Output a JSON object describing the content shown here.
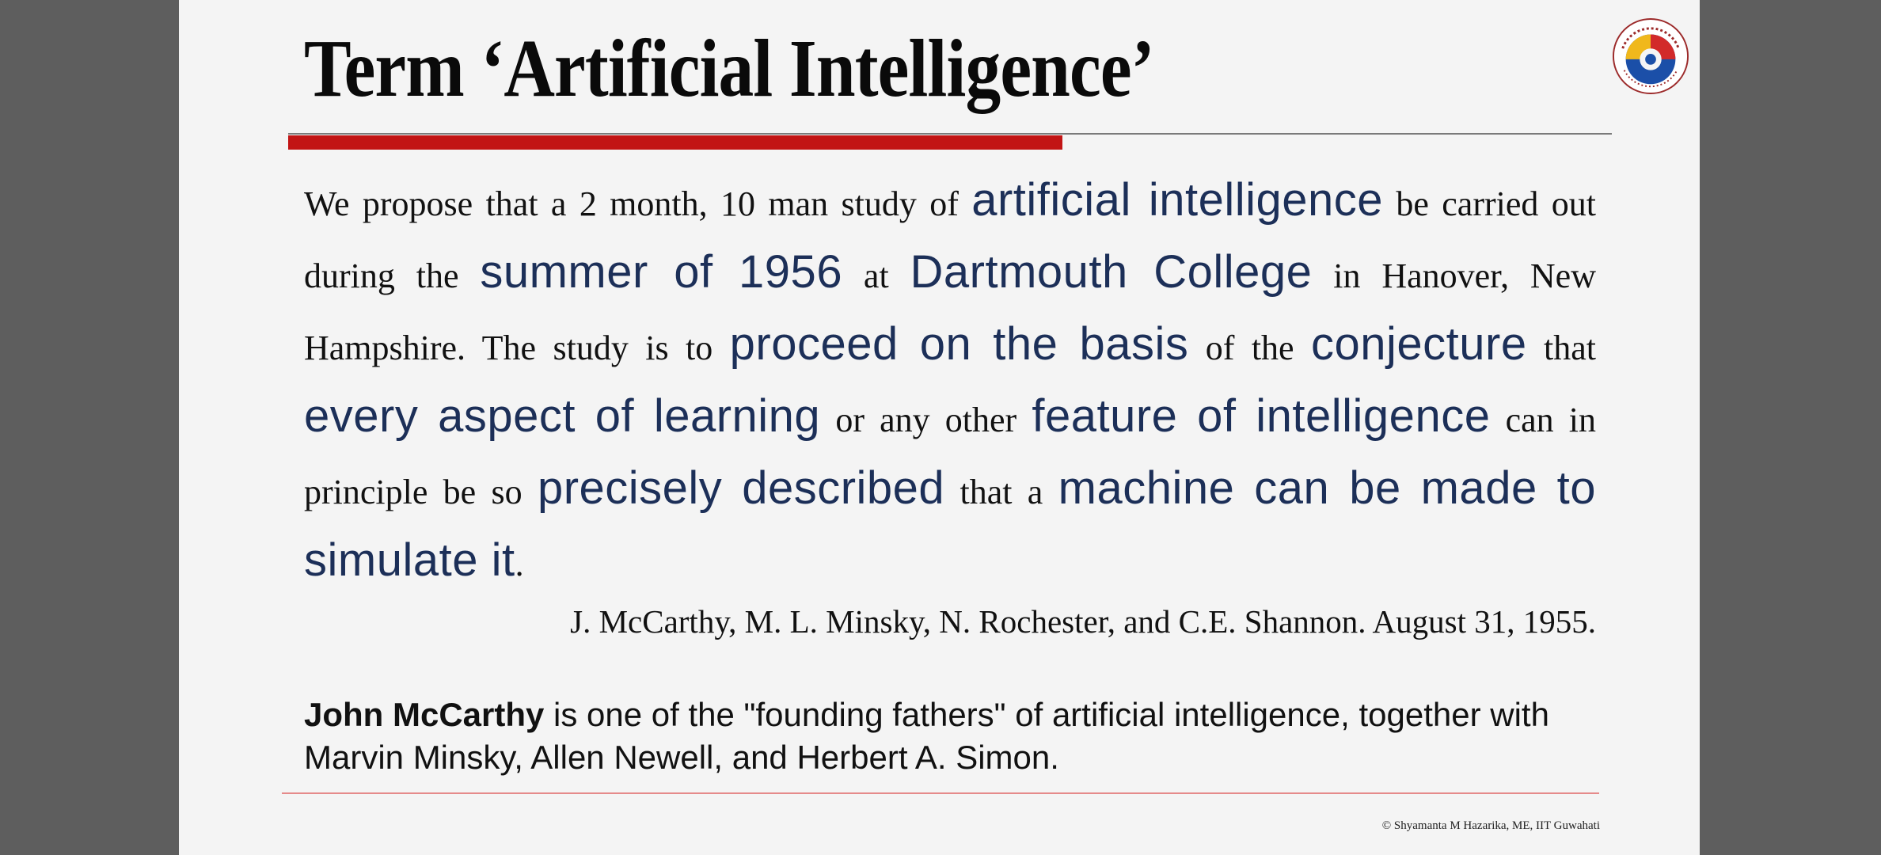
{
  "slide": {
    "title": "Term ‘Artificial Intelligence’",
    "quote": [
      {
        "t": "We propose that a 2 month, 10 man study of ",
        "em": false
      },
      {
        "t": "artificial intelligence",
        "em": true
      },
      {
        "t": " be carried out during the ",
        "em": false
      },
      {
        "t": "summer of 1956",
        "em": true
      },
      {
        "t": " at ",
        "em": false
      },
      {
        "t": "Dartmouth College",
        "em": true
      },
      {
        "t": " in Hanover, New Hampshire. The study is to ",
        "em": false
      },
      {
        "t": "proceed on the basis",
        "em": true
      },
      {
        "t": " of the ",
        "em": false
      },
      {
        "t": "conjecture",
        "em": true
      },
      {
        "t": " that ",
        "em": false
      },
      {
        "t": "every aspect of learning",
        "em": true
      },
      {
        "t": " or any other ",
        "em": false
      },
      {
        "t": "feature of intelligence",
        "em": true
      },
      {
        "t": " can in principle be so ",
        "em": false
      },
      {
        "t": "precisely described",
        "em": true
      },
      {
        "t": " that a ",
        "em": false
      },
      {
        "t": "machine can be made to simulate it",
        "em": true
      },
      {
        "t": ".",
        "em": false
      }
    ],
    "attribution": "J. McCarthy, M. L. Minsky, N. Rochester, and C.E. Shannon. August 31, 1955.",
    "note_bold": "John McCarthy",
    "note_rest": " is one of the \"founding fathers\" of artificial intelligence, together with Marvin Minsky, Allen Newell, and Herbert A. Simon.",
    "copyright": "© Shyamanta M Hazarika, ME, IIT Guwahati",
    "logo_icon": "iit-guwahati-logo-icon",
    "colors": {
      "accent_red": "#c21414",
      "emphasis_blue": "#1c2f58"
    }
  }
}
